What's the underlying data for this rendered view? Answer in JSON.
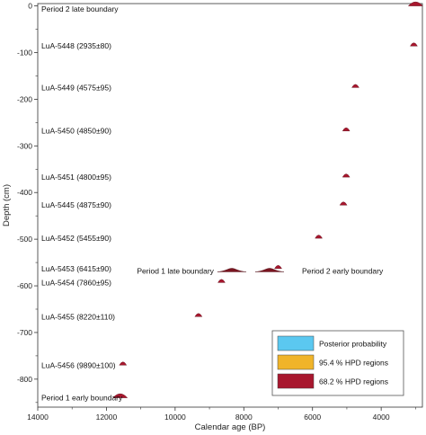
{
  "chart_data": {
    "type": "scatter",
    "xlabel": "Calendar age (BP)",
    "ylabel": "Depth (cm)",
    "xlim": [
      14000,
      2800
    ],
    "ylim": [
      -860,
      5
    ],
    "x_ticks": [
      "14000",
      "12000",
      "10000",
      "8000",
      "6000",
      "4000"
    ],
    "y_ticks": [
      "0",
      "-100",
      "-200",
      "-300",
      "-400",
      "-500",
      "-600",
      "-700",
      "-800"
    ],
    "points": [
      {
        "label": "Period 2 late boundary",
        "x": 3000,
        "y": 0
      },
      {
        "label": "LuA-5448 (2935±80)",
        "x": 3050,
        "y": -86
      },
      {
        "label": "LuA-5449 (4575±95)",
        "x": 4750,
        "y": -175
      },
      {
        "label": "LuA-5450 (4850±90)",
        "x": 5020,
        "y": -268
      },
      {
        "label": "LuA-5451 (4800±95)",
        "x": 5020,
        "y": -367
      },
      {
        "label": "LuA-5445 (4875±90)",
        "x": 5100,
        "y": -427
      },
      {
        "label": "LuA-5452 (5455±90)",
        "x": 5820,
        "y": -498
      },
      {
        "label": "LuA-5453 (6415±90)",
        "x": 7000,
        "y": -563
      },
      {
        "label": "LuA-5454 (7860±95)",
        "x": 8650,
        "y": -593
      },
      {
        "label": "LuA-5455 (8220±110)",
        "x": 9320,
        "y": -666
      },
      {
        "label": "LuA-5456 (9890±100)",
        "x": 11520,
        "y": -770
      },
      {
        "label": "Period 1 early boundary",
        "x": 11600,
        "y": -840
      }
    ],
    "boundaries": [
      {
        "label": "Period 1 late boundary",
        "x": 8350,
        "y": -570
      },
      {
        "label": "Period 2 early boundary",
        "x": 7250,
        "y": -570
      }
    ],
    "legend": {
      "placement": "bottom-right",
      "entries": [
        {
          "name": "Posterior probability",
          "color": "#5bc8f0"
        },
        {
          "name": "95.4 % HPD regions",
          "color": "#f0b429"
        },
        {
          "name": "68.2 % HPD regions",
          "color": "#a8172e"
        }
      ]
    },
    "grid": false
  },
  "colors": {
    "marker": "#a8172e",
    "boundary": "#7a1520",
    "axis": "#333333"
  }
}
